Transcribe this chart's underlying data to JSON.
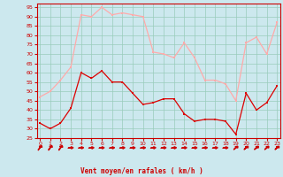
{
  "x": [
    0,
    1,
    2,
    3,
    4,
    5,
    6,
    7,
    8,
    9,
    10,
    11,
    12,
    13,
    14,
    15,
    16,
    17,
    18,
    19,
    20,
    21,
    22,
    23
  ],
  "wind_avg": [
    33,
    30,
    33,
    41,
    60,
    57,
    61,
    55,
    55,
    49,
    43,
    44,
    46,
    46,
    38,
    34,
    35,
    35,
    34,
    27,
    49,
    40,
    44,
    53
  ],
  "wind_gust": [
    47,
    50,
    56,
    63,
    91,
    90,
    95,
    91,
    92,
    91,
    90,
    71,
    70,
    68,
    76,
    68,
    56,
    56,
    54,
    45,
    76,
    79,
    70,
    87
  ],
  "avg_color": "#dd0000",
  "gust_color": "#ffaaaa",
  "bg_color": "#cce8ee",
  "grid_color": "#99ccbb",
  "xlabel": "Vent moyen/en rafales ( km/h )",
  "ylim": [
    25,
    97
  ],
  "xlim": [
    -0.3,
    23.3
  ],
  "yticks": [
    25,
    30,
    35,
    40,
    45,
    50,
    55,
    60,
    65,
    70,
    75,
    80,
    85,
    90,
    95
  ],
  "xticks": [
    0,
    1,
    2,
    3,
    4,
    5,
    6,
    7,
    8,
    9,
    10,
    11,
    12,
    13,
    14,
    15,
    16,
    17,
    18,
    19,
    20,
    21,
    22,
    23
  ],
  "tick_color": "#cc0000",
  "label_color": "#cc0000",
  "spine_color": "#cc0000"
}
